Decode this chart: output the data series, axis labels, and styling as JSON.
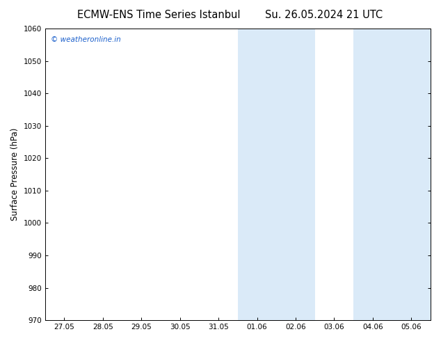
{
  "title_left": "ECMW-ENS Time Series Istanbul",
  "title_right": "Su. 26.05.2024 21 UTC",
  "ylabel": "Surface Pressure (hPa)",
  "ylim": [
    970,
    1060
  ],
  "yticks": [
    970,
    980,
    990,
    1000,
    1010,
    1020,
    1030,
    1040,
    1050,
    1060
  ],
  "xlabels": [
    "27.05",
    "28.05",
    "29.05",
    "30.05",
    "31.05",
    "01.06",
    "02.06",
    "03.06",
    "04.06",
    "05.06"
  ],
  "xvalues": [
    0,
    1,
    2,
    3,
    4,
    5,
    6,
    7,
    8,
    9
  ],
  "xlim": [
    -0.5,
    9.5
  ],
  "shaded_bands": [
    {
      "x_start": 4.5,
      "x_end": 5.5
    },
    {
      "x_start": 5.5,
      "x_end": 6.5
    },
    {
      "x_start": 7.5,
      "x_end": 8.5
    },
    {
      "x_start": 8.5,
      "x_end": 9.5
    }
  ],
  "watermark_text": "© weatheronline.in",
  "watermark_color": "#1a5fcb",
  "background_color": "#ffffff",
  "band_color": "#daeaf8",
  "title_fontsize": 10.5,
  "ylabel_fontsize": 8.5,
  "tick_fontsize": 7.5
}
